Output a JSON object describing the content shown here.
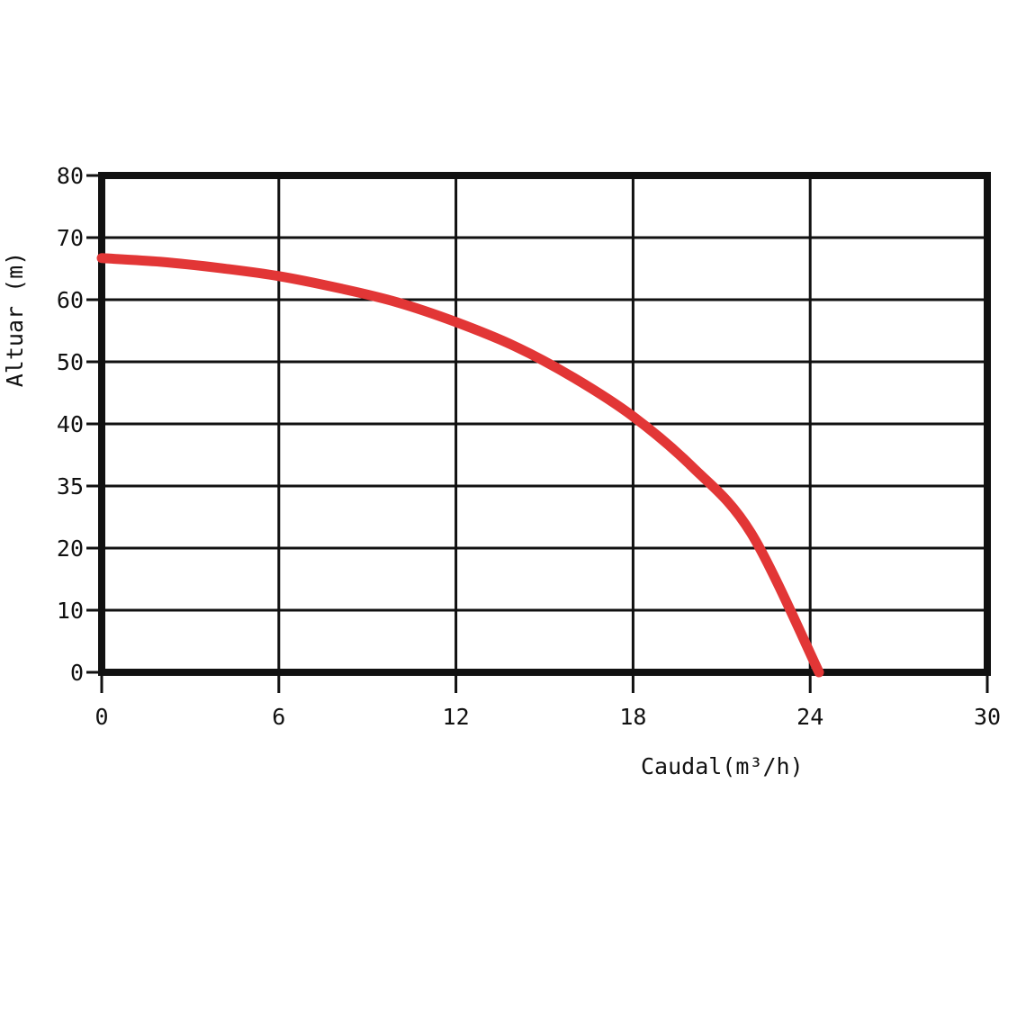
{
  "chart_data": {
    "type": "line",
    "title": "",
    "xlabel": "Caudal(m³/h)",
    "ylabel": "Altuar (m)",
    "x_ticks": [
      "0",
      "6",
      "12",
      "18",
      "24",
      "30"
    ],
    "y_ticks": [
      "0",
      "10",
      "20",
      "35",
      "40",
      "50",
      "60",
      "70",
      "80"
    ],
    "x_range": [
      0,
      30
    ],
    "grid": true,
    "colors": {
      "curve": "#e23636",
      "grid": "#111111",
      "frame": "#111111",
      "background": "#ffffff"
    },
    "series": [
      {
        "x": [
          0,
          2,
          4,
          6,
          8,
          10,
          12,
          14,
          16,
          18,
          20,
          22,
          24.3
        ],
        "y_index": [
          6.67,
          6.61,
          6.51,
          6.38,
          6.19,
          5.96,
          5.64,
          5.25,
          4.74,
          4.12,
          3.31,
          2.24,
          0
        ]
      }
    ]
  }
}
